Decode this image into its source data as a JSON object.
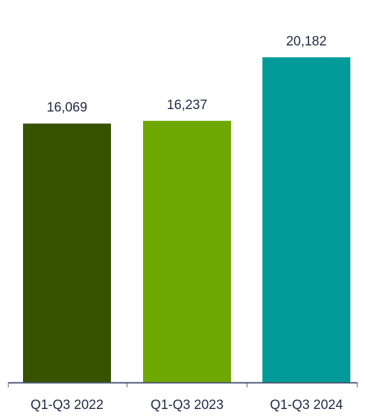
{
  "chart_data": {
    "type": "bar",
    "categories": [
      "Q1-Q3 2022",
      "Q1-Q3 2023",
      "Q1-Q3 2024"
    ],
    "values": [
      16069,
      16237,
      20182
    ],
    "data_labels": [
      "16,069",
      "16,237",
      "20,182"
    ],
    "colors": [
      "#375300",
      "#6ea700",
      "#009b98"
    ],
    "axis_color": "#4a5670",
    "label_color": "#1f2a44",
    "title": "",
    "xlabel": "",
    "ylabel": "",
    "ylim": [
      0,
      22000
    ],
    "grid": false,
    "legend": "none"
  }
}
